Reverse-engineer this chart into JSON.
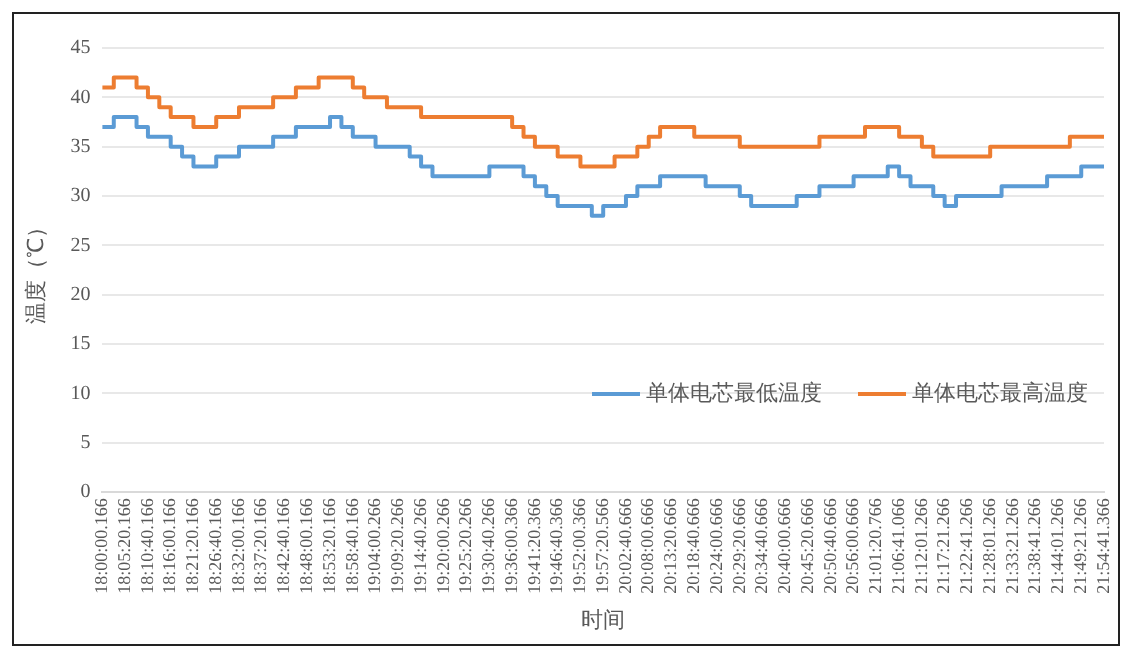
{
  "chart_data": {
    "type": "step",
    "xlabel": "时间",
    "ylabel": "温度（℃）",
    "categories": [
      "18:00:00.166",
      null,
      "18:05:20.166",
      null,
      "18:10:40.166",
      null,
      "18:16:00.166",
      null,
      "18:21:20.166",
      null,
      "18:26:40.166",
      null,
      "18:32:00.166",
      null,
      "18:37:20.166",
      null,
      "18:42:40.166",
      null,
      "18:48:00.166",
      null,
      "18:53:20.166",
      null,
      "18:58:40.166",
      null,
      "19:04:00.266",
      null,
      "19:09:20.266",
      null,
      "19:14:40.266",
      null,
      "19:20:00.266",
      null,
      "19:25:20.266",
      null,
      "19:30:40.266",
      null,
      "19:36:00.366",
      null,
      "19:41:20.366",
      null,
      "19:46:40.366",
      null,
      "19:52:00.366",
      null,
      "19:57:20.566",
      null,
      "20:02:40.666",
      null,
      "20:08:00.666",
      null,
      "20:13:20.666",
      null,
      "20:18:40.666",
      null,
      "20:24:00.666",
      null,
      "20:29:20.666",
      null,
      "20:34:40.666",
      null,
      "20:40:00.666",
      null,
      "20:45:20.666",
      null,
      "20:50:40.666",
      null,
      "20:56:00.666",
      null,
      "21:01:20.766",
      null,
      "21:06:41.066",
      null,
      "21:12:01.266",
      null,
      "21:17:21.266",
      null,
      "21:22:41.266",
      null,
      "21:28:01.266",
      null,
      "21:33:21.266",
      null,
      "21:38:41.266",
      null,
      "21:44:01.266",
      null,
      "21:49:21.266",
      null,
      "21:54:41.366"
    ],
    "series": [
      {
        "name": "单体电芯最低温度",
        "color": "#5b9bd5",
        "values": [
          37,
          37,
          38,
          38,
          37,
          36,
          36,
          35,
          34,
          33,
          33,
          34,
          34,
          35,
          35,
          35,
          36,
          36,
          37,
          37,
          37,
          38,
          37,
          36,
          36,
          35,
          35,
          35,
          34,
          33,
          32,
          32,
          32,
          32,
          32,
          33,
          33,
          33,
          32,
          31,
          30,
          29,
          29,
          29,
          28,
          29,
          29,
          30,
          31,
          31,
          32,
          32,
          32,
          32,
          31,
          31,
          31,
          30,
          29,
          29,
          29,
          29,
          30,
          30,
          31,
          31,
          31,
          32,
          32,
          32,
          33,
          32,
          31,
          31,
          30,
          29,
          30,
          30,
          30,
          30,
          31,
          31,
          31,
          31,
          32,
          32,
          32,
          33,
          33
        ]
      },
      {
        "name": "单体电芯最高温度",
        "color": "#ed7d31",
        "values": [
          41,
          41,
          42,
          42,
          41,
          40,
          39,
          38,
          38,
          37,
          37,
          38,
          38,
          39,
          39,
          39,
          40,
          40,
          41,
          41,
          42,
          42,
          42,
          41,
          40,
          40,
          39,
          39,
          39,
          38,
          38,
          38,
          38,
          38,
          38,
          38,
          38,
          37,
          36,
          35,
          35,
          34,
          34,
          33,
          33,
          33,
          34,
          34,
          35,
          36,
          37,
          37,
          37,
          36,
          36,
          36,
          36,
          35,
          35,
          35,
          35,
          35,
          35,
          35,
          36,
          36,
          36,
          36,
          37,
          37,
          37,
          36,
          36,
          35,
          34,
          34,
          34,
          34,
          34,
          35,
          35,
          35,
          35,
          35,
          35,
          35,
          36,
          36,
          36
        ]
      }
    ],
    "ylim": [
      0,
      45
    ],
    "yticks": [
      0,
      5,
      10,
      15,
      20,
      25,
      30,
      35,
      40,
      45
    ],
    "grid": "y",
    "legend": "bottom right"
  }
}
